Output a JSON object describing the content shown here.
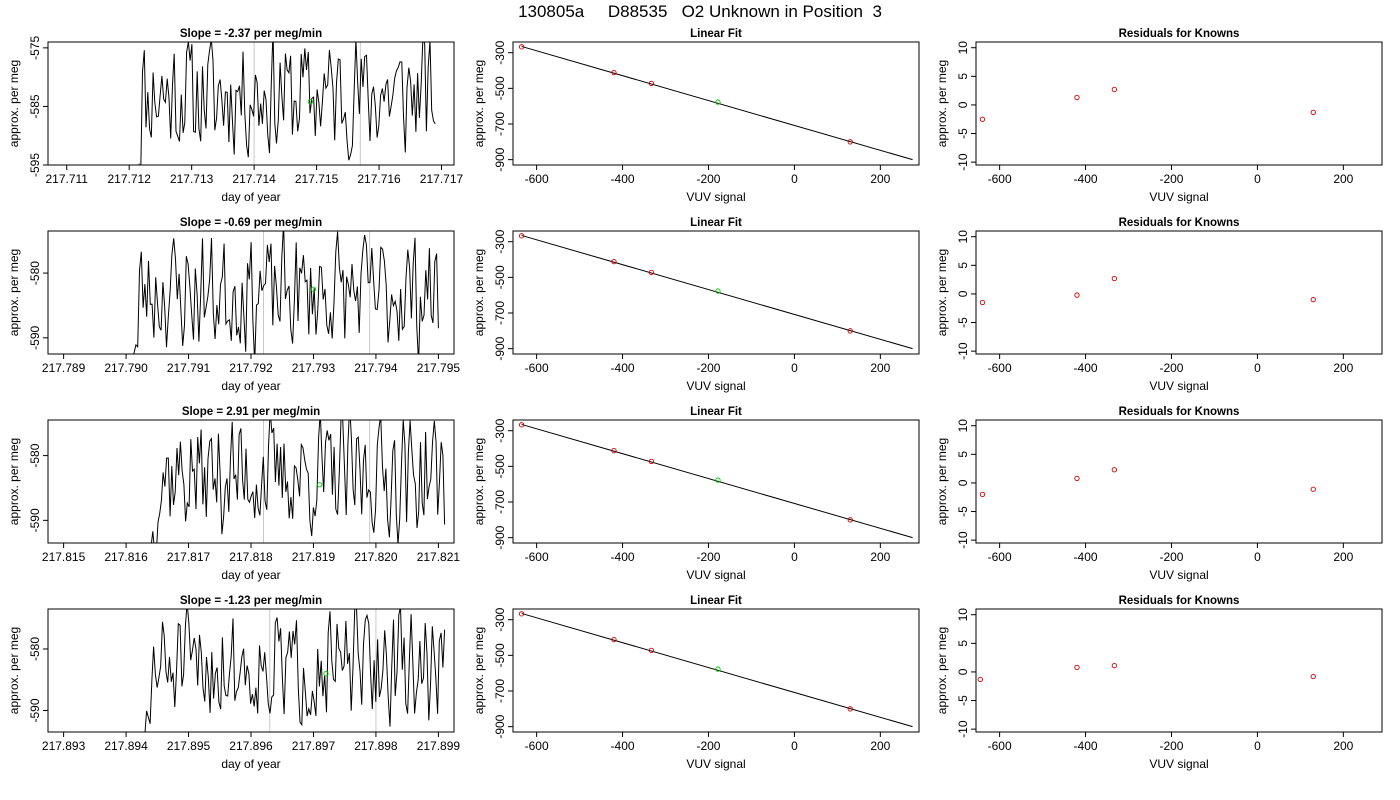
{
  "figure": {
    "title": "130805a     D88535   O2 Unknown in Position  3"
  },
  "colors": {
    "trace": "#000000",
    "known_point": "#cc0000",
    "unknown_point": "#00cc00",
    "gray_line": "#c8c8c8",
    "frame": "#000000"
  },
  "chart_data": [
    {
      "type": "line",
      "title": "Slope =  -2.37  per meg/min",
      "xlabel": "day of year",
      "ylabel": "approx. per meg",
      "xlim": [
        217.7107,
        217.7172
      ],
      "ylim": [
        -595,
        -574
      ],
      "xticks": [
        "217.711",
        "217.712",
        "217.713",
        "217.714",
        "217.715",
        "217.716",
        "217.717"
      ],
      "yticks": [
        "-575",
        "-585",
        "-595"
      ],
      "vlines": [
        217.714,
        217.7157
      ],
      "x_start": 217.7121,
      "x_end": 217.7169,
      "trace_seed": 11,
      "trace_mean": -583,
      "trace_amp": 9,
      "unknown_point": [
        217.7149,
        -584.2
      ]
    },
    {
      "type": "scatter",
      "title": "Linear Fit",
      "xlabel": "VUV signal",
      "ylabel": "approx. per meg",
      "xlim": [
        -655,
        290
      ],
      "ylim": [
        -930,
        -240
      ],
      "xticks": [
        "-600",
        "-400",
        "-200",
        "0",
        "200"
      ],
      "yticks": [
        "-300",
        "-500",
        "-700",
        "-900"
      ],
      "line": [
        [
          -635,
          -265
        ],
        [
          275,
          -900
        ]
      ],
      "knowns": [
        [
          -635,
          -267
        ],
        [
          -420,
          -412
        ],
        [
          -333,
          -472
        ],
        [
          130,
          -800
        ]
      ],
      "unknown": [
        [
          -178,
          -577
        ]
      ]
    },
    {
      "type": "scatter",
      "title": "Residuals for Knowns",
      "xlabel": "VUV signal",
      "ylabel": "approx. per meg",
      "xlim": [
        -655,
        290
      ],
      "ylim": [
        -10.5,
        11
      ],
      "xticks": [
        "-600",
        "-400",
        "-200",
        "0",
        "200"
      ],
      "yticks": [
        "-10",
        "-5",
        "0",
        "5",
        "10"
      ],
      "points": [
        [
          -640,
          -2.5
        ],
        [
          -420,
          1.3
        ],
        [
          -333,
          2.7
        ],
        [
          130,
          -1.3
        ]
      ]
    },
    {
      "type": "line",
      "title": "Slope =  -0.69  per meg/min",
      "xlabel": "day of year",
      "ylabel": "approx. per meg",
      "xlim": [
        217.78875,
        217.79525
      ],
      "ylim": [
        -592.5,
        -573.5
      ],
      "xticks": [
        "217.789",
        "217.790",
        "217.791",
        "217.792",
        "217.793",
        "217.794",
        "217.795"
      ],
      "yticks": [
        "-580",
        "-590"
      ],
      "vlines": [
        217.7922,
        217.7939
      ],
      "x_start": 217.7901,
      "x_end": 217.795,
      "trace_seed": 23,
      "trace_mean": -583,
      "trace_amp": 8,
      "unknown_point": [
        217.793,
        -582.5
      ]
    },
    {
      "type": "scatter",
      "title": "Linear Fit",
      "xlabel": "VUV signal",
      "ylabel": "approx. per meg",
      "xlim": [
        -655,
        290
      ],
      "ylim": [
        -930,
        -240
      ],
      "xticks": [
        "-600",
        "-400",
        "-200",
        "0",
        "200"
      ],
      "yticks": [
        "-300",
        "-500",
        "-700",
        "-900"
      ],
      "line": [
        [
          -635,
          -265
        ],
        [
          275,
          -900
        ]
      ],
      "knowns": [
        [
          -635,
          -267
        ],
        [
          -420,
          -412
        ],
        [
          -333,
          -472
        ],
        [
          130,
          -800
        ]
      ],
      "unknown": [
        [
          -178,
          -577
        ]
      ]
    },
    {
      "type": "scatter",
      "title": "Residuals for Knowns",
      "xlabel": "VUV signal",
      "ylabel": "approx. per meg",
      "xlim": [
        -655,
        290
      ],
      "ylim": [
        -10.5,
        11
      ],
      "xticks": [
        "-600",
        "-400",
        "-200",
        "0",
        "200"
      ],
      "yticks": [
        "-10",
        "-5",
        "0",
        "5",
        "10"
      ],
      "points": [
        [
          -640,
          -1.5
        ],
        [
          -420,
          -0.2
        ],
        [
          -333,
          2.7
        ],
        [
          130,
          -1.0
        ]
      ]
    },
    {
      "type": "line",
      "title": "Slope =  2.91  per meg/min",
      "xlabel": "day of year",
      "ylabel": "approx. per meg",
      "xlim": [
        217.81475,
        217.82125
      ],
      "ylim": [
        -593.5,
        -574.5
      ],
      "xticks": [
        "217.815",
        "217.816",
        "217.817",
        "217.818",
        "217.819",
        "217.820",
        "217.821"
      ],
      "yticks": [
        "-580",
        "-590"
      ],
      "vlines": [
        217.8182,
        217.8199
      ],
      "x_start": 217.8164,
      "x_end": 217.8211,
      "trace_seed": 37,
      "trace_mean": -583,
      "trace_amp": 8,
      "unknown_point": [
        217.8191,
        -584.5
      ]
    },
    {
      "type": "scatter",
      "title": "Linear Fit",
      "xlabel": "VUV signal",
      "ylabel": "approx. per meg",
      "xlim": [
        -655,
        290
      ],
      "ylim": [
        -930,
        -240
      ],
      "xticks": [
        "-600",
        "-400",
        "-200",
        "0",
        "200"
      ],
      "yticks": [
        "-300",
        "-500",
        "-700",
        "-900"
      ],
      "line": [
        [
          -635,
          -265
        ],
        [
          275,
          -900
        ]
      ],
      "knowns": [
        [
          -635,
          -267
        ],
        [
          -420,
          -412
        ],
        [
          -333,
          -472
        ],
        [
          130,
          -800
        ]
      ],
      "unknown": [
        [
          -178,
          -577
        ]
      ]
    },
    {
      "type": "scatter",
      "title": "Residuals for Knowns",
      "xlabel": "VUV signal",
      "ylabel": "approx. per meg",
      "xlim": [
        -655,
        290
      ],
      "ylim": [
        -10.5,
        11
      ],
      "xticks": [
        "-600",
        "-400",
        "-200",
        "0",
        "200"
      ],
      "yticks": [
        "-10",
        "-5",
        "0",
        "5",
        "10"
      ],
      "points": [
        [
          -640,
          -2.0
        ],
        [
          -420,
          0.8
        ],
        [
          -333,
          2.3
        ],
        [
          130,
          -1.1
        ]
      ]
    },
    {
      "type": "line",
      "title": "Slope =  -1.23  per meg/min",
      "xlabel": "day of year",
      "ylabel": "approx. per meg",
      "xlim": [
        217.89275,
        217.89925
      ],
      "ylim": [
        -593.5,
        -573.5
      ],
      "xticks": [
        "217.893",
        "217.894",
        "217.895",
        "217.896",
        "217.897",
        "217.898",
        "217.899"
      ],
      "yticks": [
        "-580",
        "-590"
      ],
      "vlines": [
        217.8963,
        217.898
      ],
      "x_start": 217.8943,
      "x_end": 217.8991,
      "trace_seed": 51,
      "trace_mean": -583,
      "trace_amp": 8,
      "unknown_point": [
        217.8972,
        -584.0
      ]
    },
    {
      "type": "scatter",
      "title": "Linear Fit",
      "xlabel": "VUV signal",
      "ylabel": "approx. per meg",
      "xlim": [
        -655,
        290
      ],
      "ylim": [
        -930,
        -240
      ],
      "xticks": [
        "-600",
        "-400",
        "-200",
        "0",
        "200"
      ],
      "yticks": [
        "-300",
        "-500",
        "-700",
        "-900"
      ],
      "line": [
        [
          -635,
          -265
        ],
        [
          275,
          -900
        ]
      ],
      "knowns": [
        [
          -635,
          -267
        ],
        [
          -420,
          -412
        ],
        [
          -333,
          -472
        ],
        [
          130,
          -800
        ]
      ],
      "unknown": [
        [
          -178,
          -577
        ]
      ]
    },
    {
      "type": "scatter",
      "title": "Residuals for Knowns",
      "xlabel": "VUV signal",
      "ylabel": "approx. per meg",
      "xlim": [
        -655,
        290
      ],
      "ylim": [
        -10.5,
        11
      ],
      "xticks": [
        "-600",
        "-400",
        "-200",
        "0",
        "200"
      ],
      "yticks": [
        "-10",
        "-5",
        "0",
        "5",
        "10"
      ],
      "points": [
        [
          -645,
          -1.3
        ],
        [
          -420,
          0.8
        ],
        [
          -333,
          1.1
        ],
        [
          130,
          -0.8
        ]
      ]
    }
  ]
}
